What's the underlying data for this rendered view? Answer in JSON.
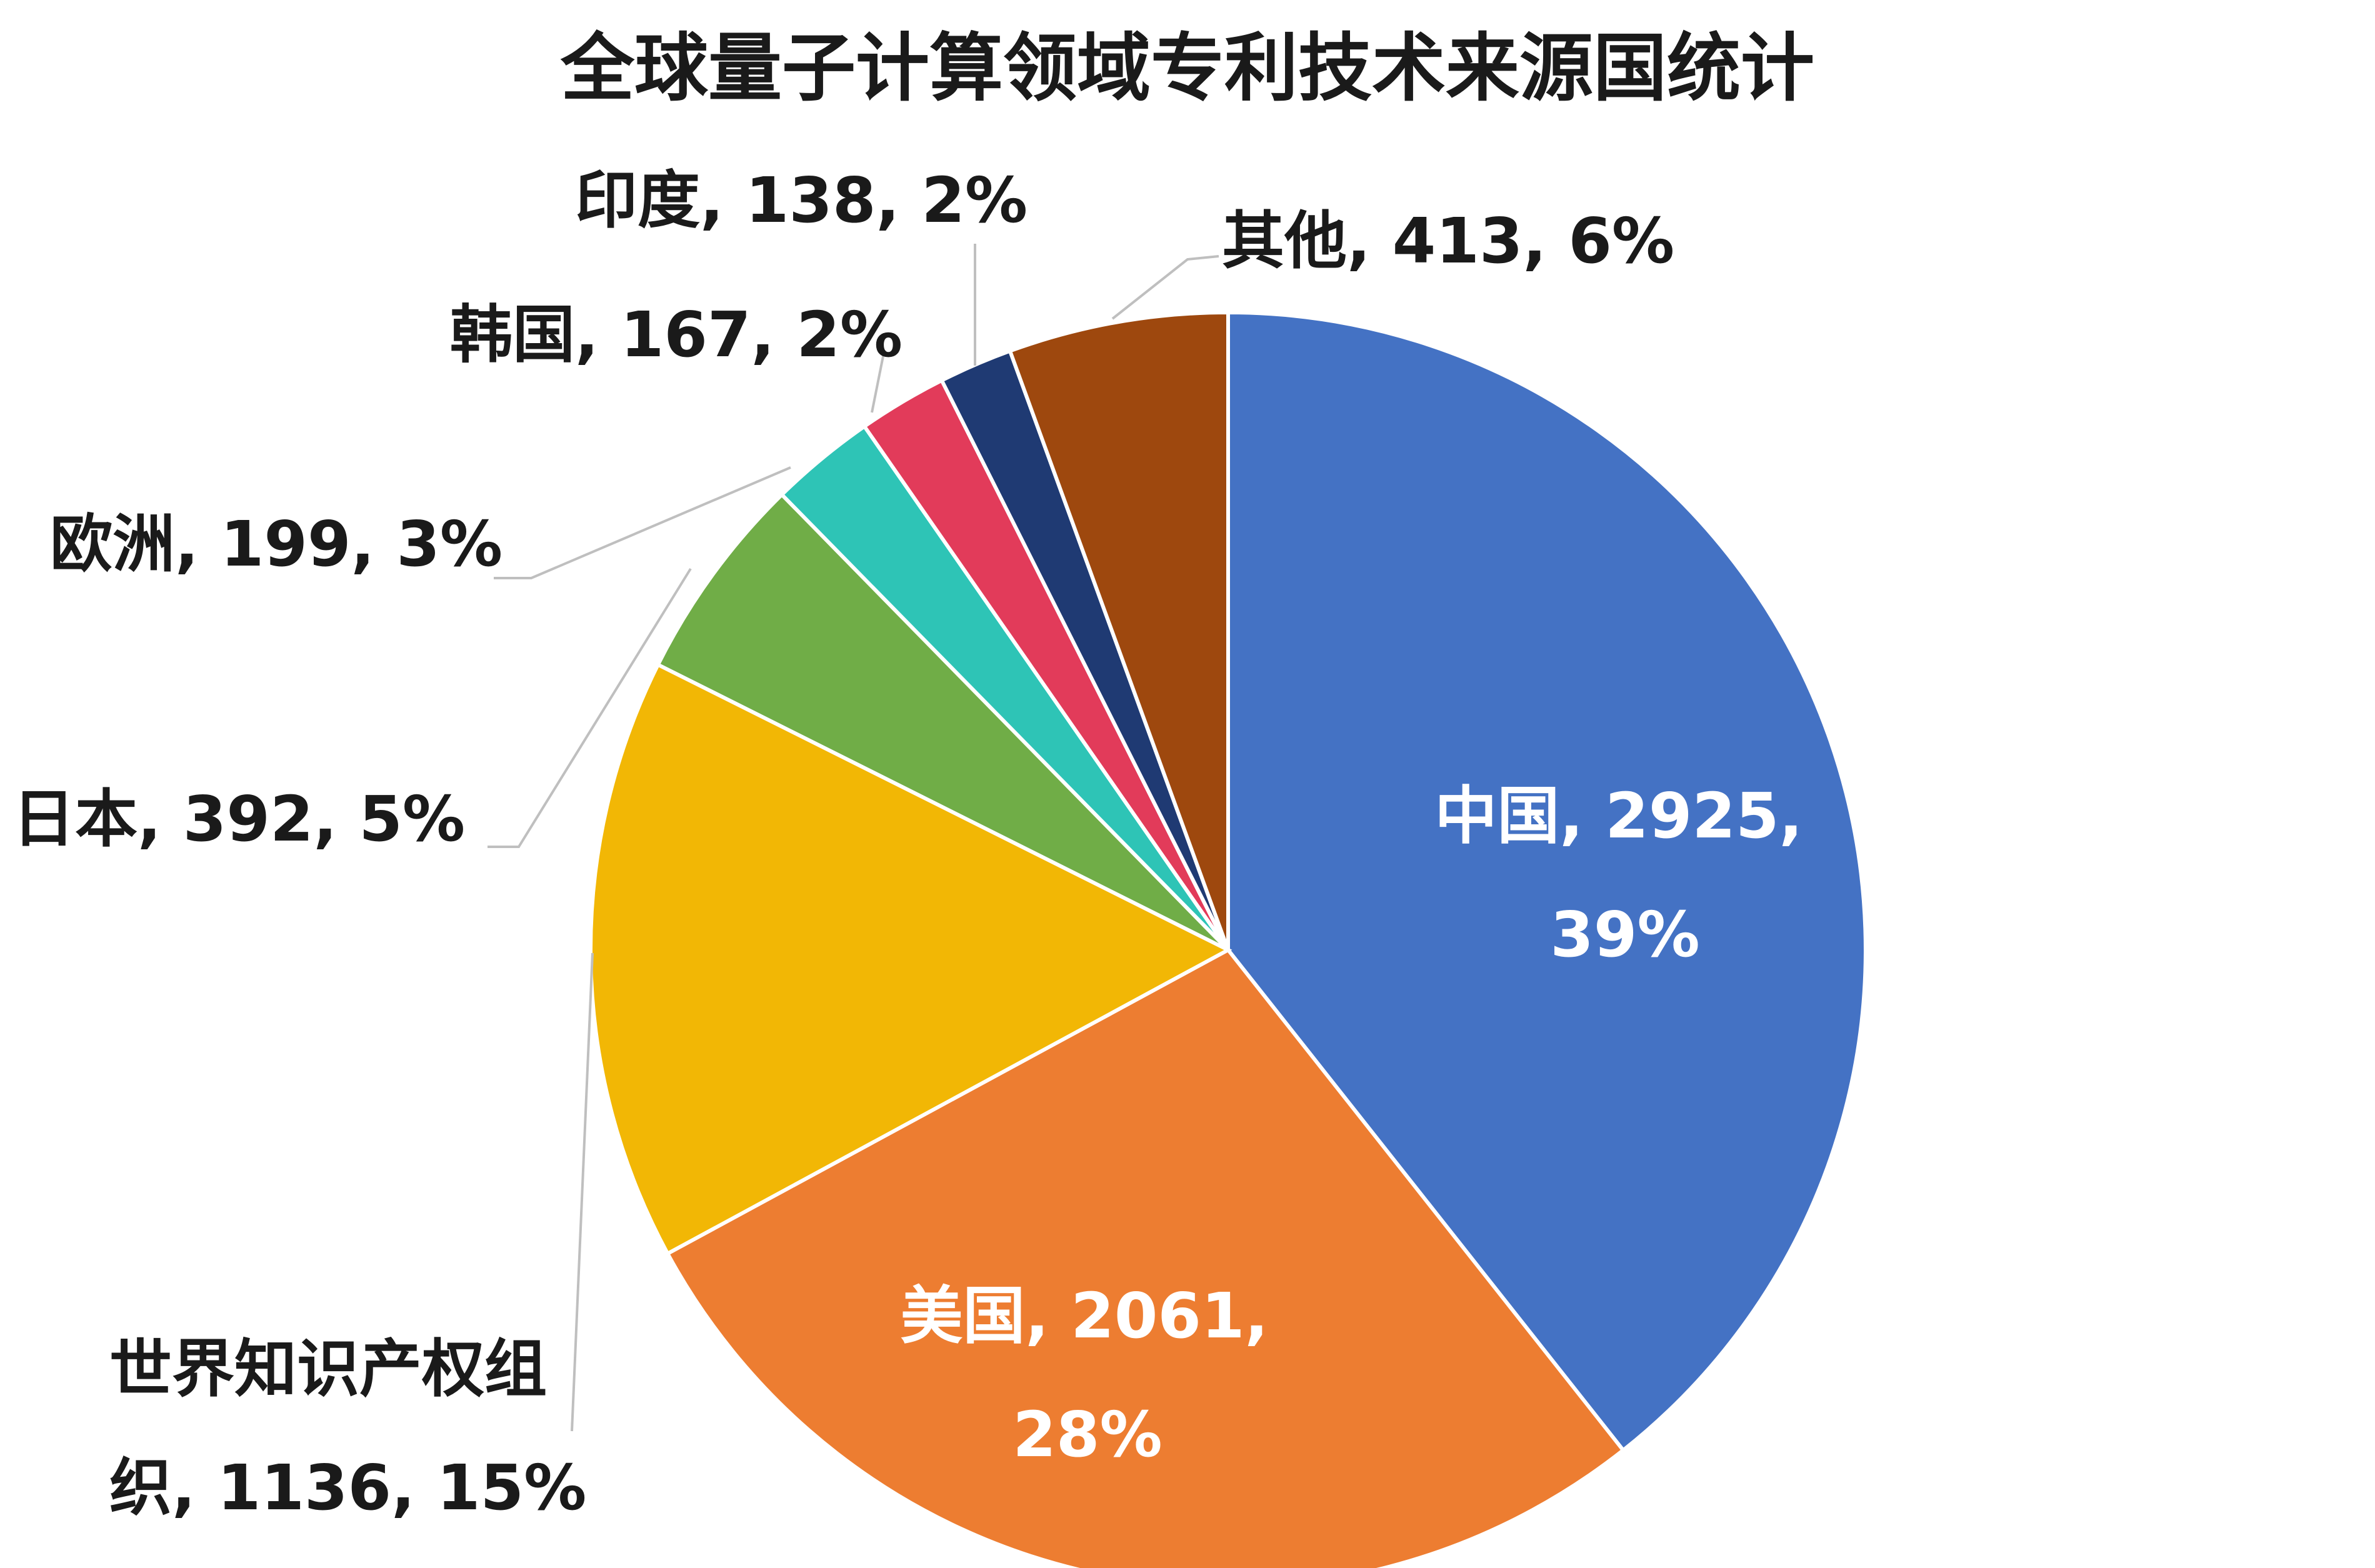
{
  "chart_data": {
    "type": "pie",
    "title": "全球量子计算领域专利技术来源国统计",
    "slices": [
      {
        "name": "中国",
        "value": 2925,
        "percent": "39%",
        "color": "#4472C4",
        "label": "中国, 2925, 39%"
      },
      {
        "name": "美国",
        "value": 2061,
        "percent": "28%",
        "color": "#ED7D31",
        "label": "美国, 2061, 28%"
      },
      {
        "name": "世界知识产权组织",
        "value": 1136,
        "percent": "15%",
        "color": "#F2B705",
        "label": "世界知识产权组织, 1136, 15%"
      },
      {
        "name": "日本",
        "value": 392,
        "percent": "5%",
        "color": "#70AD47",
        "label": "日本, 392, 5%"
      },
      {
        "name": "欧洲",
        "value": 199,
        "percent": "3%",
        "color": "#2EC4B6",
        "label": "欧洲, 199, 3%"
      },
      {
        "name": "韩国",
        "value": 167,
        "percent": "2%",
        "color": "#E23B5A",
        "label": "韩国, 167, 2%"
      },
      {
        "name": "印度",
        "value": 138,
        "percent": "2%",
        "color": "#1F3A73",
        "label": "印度, 138, 2%"
      },
      {
        "name": "其他",
        "value": 413,
        "percent": "6%",
        "color": "#9E480E",
        "label": "其他, 413, 6%"
      }
    ],
    "labels_text": {
      "china": [
        "中国, 2925,",
        "39%"
      ],
      "usa": [
        "美国, 2061,",
        "28%"
      ],
      "wipo": [
        "世界知识产权组",
        "织, 1136, 15%"
      ],
      "japan": [
        "日本, 392, 5%"
      ],
      "europe": [
        "欧洲, 199, 3%"
      ],
      "korea": [
        "韩国, 167, 2%"
      ],
      "india": [
        "印度, 138, 2%"
      ],
      "other": [
        "其他, 413, 6%"
      ]
    }
  }
}
